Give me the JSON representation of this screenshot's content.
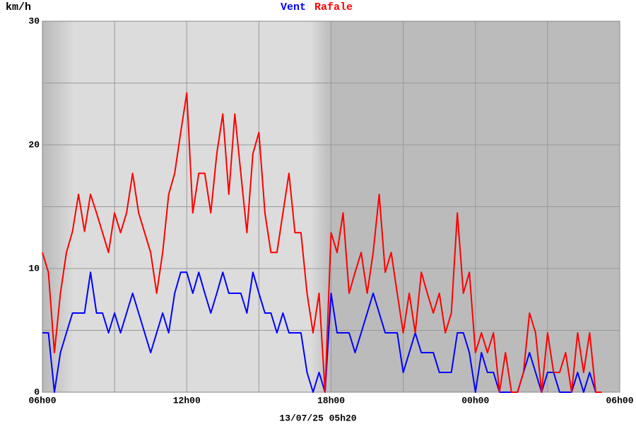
{
  "chart_data": {
    "type": "line",
    "ylabel": "km/h",
    "footer": "13/07/25 05h20",
    "xlim": [
      6,
      30
    ],
    "ylim": [
      0,
      30
    ],
    "xticks": [
      {
        "value": 6,
        "label": "06h00"
      },
      {
        "value": 12,
        "label": "12h00"
      },
      {
        "value": 18,
        "label": "18h00"
      },
      {
        "value": 24,
        "label": "00h00"
      },
      {
        "value": 30,
        "label": "06h00"
      }
    ],
    "xgrid": [
      6,
      9,
      12,
      15,
      18,
      21,
      24,
      27,
      30
    ],
    "yticks": [
      0,
      10,
      20,
      30
    ],
    "ygrid": [
      0,
      5,
      10,
      15,
      20,
      25,
      30
    ],
    "grid": true,
    "x": [
      6,
      6.25,
      6.5,
      6.75,
      7,
      7.25,
      7.5,
      7.75,
      8,
      8.25,
      8.5,
      8.75,
      9,
      9.25,
      9.5,
      9.75,
      10,
      10.25,
      10.5,
      10.75,
      11,
      11.25,
      11.5,
      11.75,
      12,
      12.25,
      12.5,
      12.75,
      13,
      13.25,
      13.5,
      13.75,
      14,
      14.25,
      14.5,
      14.75,
      15,
      15.25,
      15.5,
      15.75,
      16,
      16.25,
      16.5,
      16.75,
      17,
      17.25,
      17.5,
      17.75,
      18,
      18.25,
      18.5,
      18.75,
      19,
      19.25,
      19.5,
      19.75,
      20,
      20.25,
      20.5,
      20.75,
      21,
      21.25,
      21.5,
      21.75,
      22,
      22.25,
      22.5,
      22.75,
      23,
      23.25,
      23.5,
      23.75,
      24,
      24.25,
      24.5,
      24.75,
      25,
      25.25,
      25.5,
      25.75,
      26,
      26.25,
      26.5,
      26.75,
      27,
      27.25,
      27.5,
      27.75,
      28,
      28.25,
      28.5,
      28.75,
      29,
      29.25
    ],
    "series": [
      {
        "name": "Vent",
        "color": "#0000ff",
        "values": [
          4.8,
          4.8,
          0,
          3.2,
          4.8,
          6.4,
          6.4,
          6.4,
          9.7,
          6.4,
          6.4,
          4.8,
          6.4,
          4.8,
          6.4,
          8,
          6.4,
          4.8,
          3.2,
          4.8,
          6.4,
          4.8,
          8,
          9.7,
          9.7,
          8,
          9.7,
          8,
          6.4,
          8,
          9.7,
          8,
          8,
          8,
          6.4,
          9.7,
          8,
          6.4,
          6.4,
          4.8,
          6.4,
          4.8,
          4.8,
          4.8,
          1.6,
          0,
          1.6,
          0,
          8,
          4.8,
          4.8,
          4.8,
          3.2,
          4.8,
          6.4,
          8,
          6.4,
          4.8,
          4.8,
          4.8,
          1.6,
          3.2,
          4.8,
          3.2,
          3.2,
          3.2,
          1.6,
          1.6,
          1.6,
          4.8,
          4.8,
          3.2,
          0,
          3.2,
          1.6,
          1.6,
          0,
          0,
          0,
          0,
          1.6,
          3.2,
          1.6,
          0,
          1.6,
          1.6,
          0,
          0,
          0,
          1.6,
          0,
          1.6,
          0,
          0
        ]
      },
      {
        "name": "Rafale",
        "color": "#ff0000",
        "values": [
          11.3,
          9.7,
          3.2,
          8,
          11.3,
          13,
          16,
          13,
          16,
          14.5,
          12.9,
          11.3,
          14.5,
          12.9,
          14.5,
          17.7,
          14.5,
          12.9,
          11.3,
          8,
          11.3,
          16,
          17.7,
          21,
          24.2,
          14.5,
          17.7,
          17.7,
          14.5,
          19.3,
          22.5,
          16,
          22.5,
          17.7,
          12.9,
          19.3,
          21,
          14.5,
          11.3,
          11.3,
          14.5,
          17.7,
          12.9,
          12.9,
          8,
          4.8,
          8,
          0,
          12.9,
          11.3,
          14.5,
          8,
          9.7,
          11.3,
          8,
          11.3,
          16,
          9.7,
          11.3,
          8,
          4.8,
          8,
          4.8,
          9.7,
          8,
          6.4,
          8,
          4.8,
          6.4,
          14.5,
          8,
          9.7,
          3.2,
          4.8,
          3.2,
          4.8,
          0,
          3.2,
          0,
          0,
          1.6,
          6.4,
          4.8,
          0,
          4.8,
          1.6,
          1.6,
          3.2,
          0,
          4.8,
          1.6,
          4.8,
          0,
          0
        ]
      }
    ]
  }
}
